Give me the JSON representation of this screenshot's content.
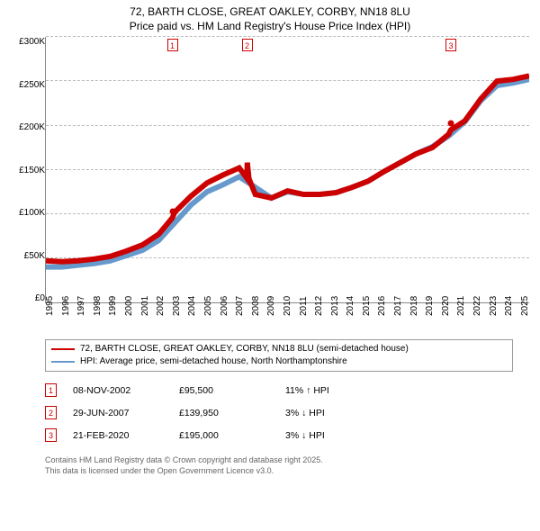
{
  "title_line1": "72, BARTH CLOSE, GREAT OAKLEY, CORBY, NN18 8LU",
  "title_line2": "Price paid vs. HM Land Registry's House Price Index (HPI)",
  "chart": {
    "type": "line",
    "x_min": 1995,
    "x_max": 2025,
    "y_min": 0,
    "y_max": 300000,
    "y_ticks": [
      0,
      50000,
      100000,
      150000,
      200000,
      250000,
      300000
    ],
    "y_tick_labels": [
      "£0",
      "£50,000k",
      "£100,000k",
      "£150,000k",
      "£200,000k",
      "£250,000k",
      "£300,000k"
    ],
    "y_tick_labels_short": [
      "£0",
      "£50K",
      "£100K",
      "£150K",
      "£200K",
      "£250K",
      "£300K"
    ],
    "x_ticks": [
      1995,
      1996,
      1997,
      1998,
      1999,
      2000,
      2001,
      2002,
      2003,
      2004,
      2005,
      2006,
      2007,
      2008,
      2009,
      2010,
      2011,
      2012,
      2013,
      2014,
      2015,
      2016,
      2017,
      2018,
      2019,
      2020,
      2021,
      2022,
      2023,
      2024,
      2025
    ],
    "grid_color": "#bbbbbb",
    "background_color": "#ffffff",
    "line_width": 2,
    "series": [
      {
        "id": "price_paid",
        "label": "72, BARTH CLOSE, GREAT OAKLEY, CORBY, NN18 8LU (semi-detached house)",
        "color": "#cc0000",
        "points": [
          [
            1995,
            47000
          ],
          [
            1996,
            46000
          ],
          [
            1997,
            47000
          ],
          [
            1998,
            49000
          ],
          [
            1999,
            52000
          ],
          [
            2000,
            58000
          ],
          [
            2001,
            65000
          ],
          [
            2002,
            77000
          ],
          [
            2002.85,
            95500
          ],
          [
            2003,
            102000
          ],
          [
            2004,
            120000
          ],
          [
            2005,
            135000
          ],
          [
            2006,
            144000
          ],
          [
            2007,
            152000
          ],
          [
            2007.49,
            139950
          ],
          [
            2007.5,
            158000
          ],
          [
            2007.6,
            140000
          ],
          [
            2008,
            122000
          ],
          [
            2009,
            118000
          ],
          [
            2010,
            126000
          ],
          [
            2011,
            122000
          ],
          [
            2012,
            122000
          ],
          [
            2013,
            124000
          ],
          [
            2014,
            130000
          ],
          [
            2015,
            137000
          ],
          [
            2016,
            148000
          ],
          [
            2017,
            158000
          ],
          [
            2018,
            168000
          ],
          [
            2019,
            175000
          ],
          [
            2020,
            190000
          ],
          [
            2020.14,
            195000
          ],
          [
            2021,
            205000
          ],
          [
            2022,
            230000
          ],
          [
            2023,
            250000
          ],
          [
            2024,
            252000
          ],
          [
            2025,
            256000
          ]
        ],
        "sale_markers": [
          {
            "n": "1",
            "x": 2002.85,
            "y": 95500
          },
          {
            "n": "2",
            "x": 2007.49,
            "y": 139950
          },
          {
            "n": "3",
            "x": 2020.14,
            "y": 195000
          }
        ]
      },
      {
        "id": "hpi",
        "label": "HPI: Average price, semi-detached house, North Northamptonshire",
        "color": "#6699cc",
        "points": [
          [
            1995,
            40000
          ],
          [
            1996,
            40000
          ],
          [
            1997,
            42000
          ],
          [
            1998,
            44000
          ],
          [
            1999,
            47000
          ],
          [
            2000,
            53000
          ],
          [
            2001,
            59000
          ],
          [
            2002,
            70000
          ],
          [
            2003,
            90000
          ],
          [
            2004,
            110000
          ],
          [
            2005,
            125000
          ],
          [
            2006,
            133000
          ],
          [
            2007,
            142000
          ],
          [
            2008,
            130000
          ],
          [
            2009,
            118000
          ],
          [
            2010,
            125000
          ],
          [
            2011,
            122000
          ],
          [
            2012,
            122000
          ],
          [
            2013,
            124000
          ],
          [
            2014,
            130000
          ],
          [
            2015,
            137000
          ],
          [
            2016,
            148000
          ],
          [
            2017,
            158000
          ],
          [
            2018,
            168000
          ],
          [
            2019,
            176000
          ],
          [
            2020,
            188000
          ],
          [
            2021,
            204000
          ],
          [
            2022,
            228000
          ],
          [
            2023,
            245000
          ],
          [
            2024,
            248000
          ],
          [
            2025,
            252000
          ]
        ]
      }
    ]
  },
  "legend": {
    "rows": [
      {
        "color": "#cc0000",
        "label": "72, BARTH CLOSE, GREAT OAKLEY, CORBY, NN18 8LU (semi-detached house)"
      },
      {
        "color": "#6699cc",
        "label": "HPI: Average price, semi-detached house, North Northamptonshire"
      }
    ]
  },
  "sales": [
    {
      "n": "1",
      "date": "08-NOV-2002",
      "price": "£95,500",
      "delta": "11% ↑ HPI"
    },
    {
      "n": "2",
      "date": "29-JUN-2007",
      "price": "£139,950",
      "delta": "3% ↓ HPI"
    },
    {
      "n": "3",
      "date": "21-FEB-2020",
      "price": "£195,000",
      "delta": "3% ↓ HPI"
    }
  ],
  "footer_line1": "Contains HM Land Registry data © Crown copyright and database right 2025.",
  "footer_line2": "This data is licensed under the Open Government Licence v3.0."
}
